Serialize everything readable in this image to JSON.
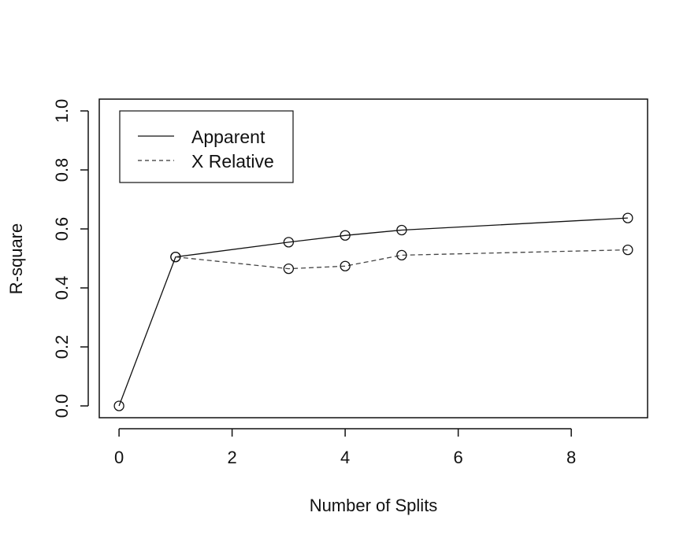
{
  "chart_data": {
    "type": "line",
    "xlabel": "Number of Splits",
    "ylabel": "R-square",
    "xlim": [
      -0.35,
      9.35
    ],
    "ylim": [
      -0.04,
      1.04
    ],
    "x_ticks": [
      "0",
      "2",
      "4",
      "6",
      "8"
    ],
    "y_ticks": [
      "0.0",
      "0.2",
      "0.4",
      "0.6",
      "0.8",
      "1.0"
    ],
    "legend_position": "top-left",
    "grid": false,
    "series": [
      {
        "name": "Apparent",
        "line_style": "solid",
        "x": [
          0,
          1,
          3,
          4,
          5,
          9
        ],
        "y": [
          0.0,
          0.505,
          0.555,
          0.578,
          0.596,
          0.637
        ]
      },
      {
        "name": "X Relative",
        "line_style": "dashed",
        "x": [
          1,
          3,
          4,
          5,
          9
        ],
        "y": [
          0.505,
          0.465,
          0.474,
          0.511,
          0.529
        ]
      }
    ]
  }
}
